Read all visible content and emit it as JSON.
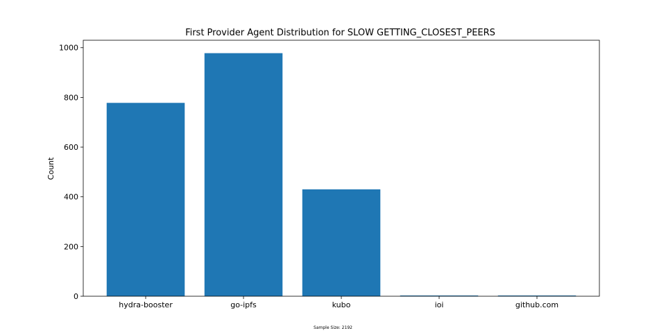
{
  "chart_data": {
    "type": "bar",
    "title": "First Provider Agent Distribution for SLOW GETTING_CLOSEST_PEERS",
    "xlabel": "",
    "ylabel": "Count",
    "categories": [
      "hydra-booster",
      "go-ipfs",
      "kubo",
      "ioi",
      "github.com"
    ],
    "values": [
      778,
      978,
      430,
      3,
      3
    ],
    "ylim": [
      0,
      1030
    ],
    "yticks": [
      0,
      200,
      400,
      600,
      800,
      1000
    ],
    "bar_color": "#1f77b4",
    "grid": false,
    "footnote": "Sample Size: 2192"
  }
}
